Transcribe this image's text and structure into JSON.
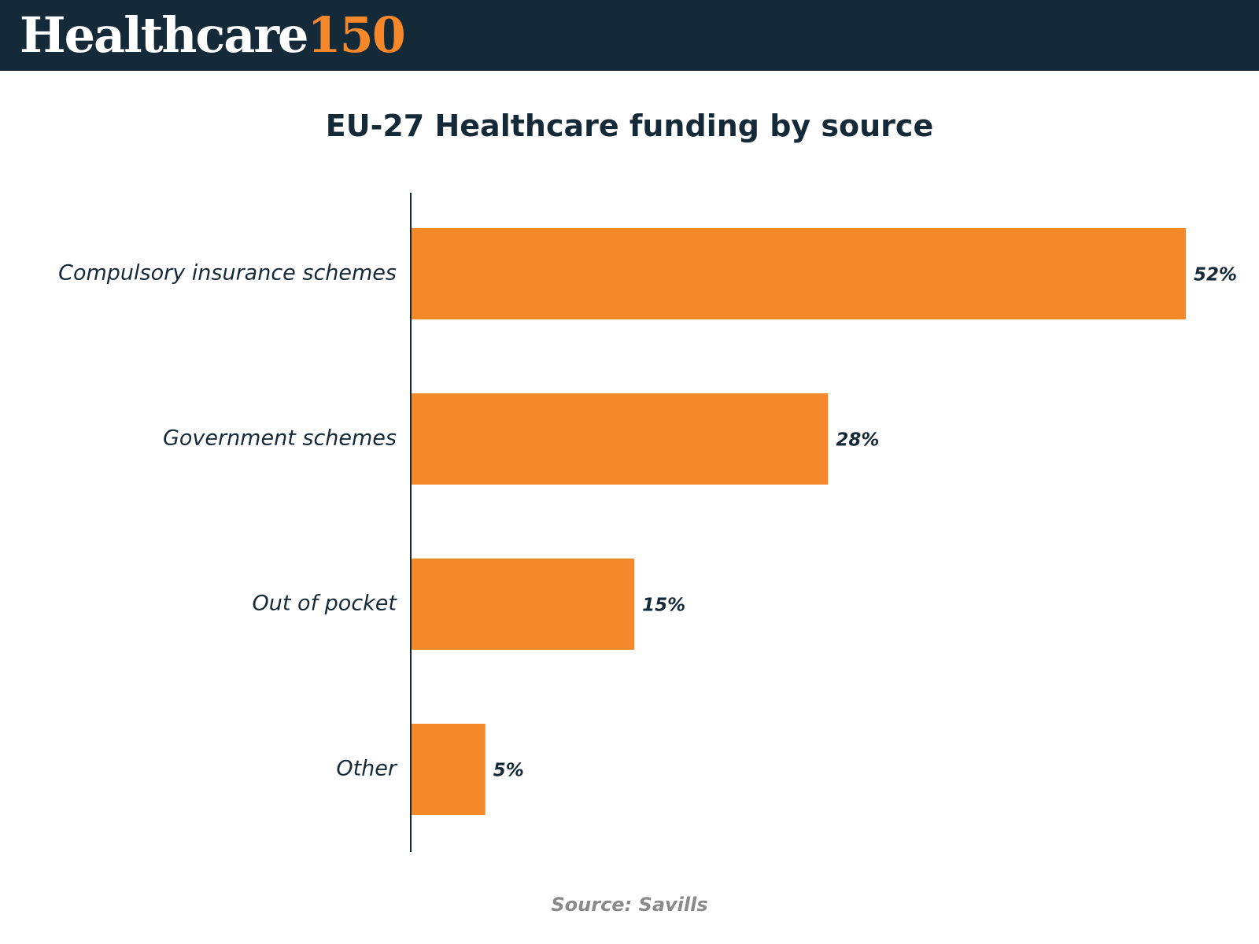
{
  "header": {
    "logo_word": "Healthcare",
    "logo_number": "150",
    "background_color": "#152a38",
    "accent_color": "#f5882a"
  },
  "chart_data": {
    "type": "bar",
    "orientation": "horizontal",
    "title": "EU-27 Healthcare funding by source",
    "categories": [
      "Compulsory insurance schemes",
      "Government schemes",
      "Out of pocket",
      "Other"
    ],
    "values": [
      52,
      28,
      15,
      5
    ],
    "data_labels": [
      "52%",
      "28%",
      "15%",
      "5%"
    ],
    "unit": "%",
    "xlim": [
      0,
      52
    ],
    "grid": false,
    "legend": "none",
    "bar_color": "#f5882a"
  },
  "footer": {
    "source": "Source: Savills"
  }
}
